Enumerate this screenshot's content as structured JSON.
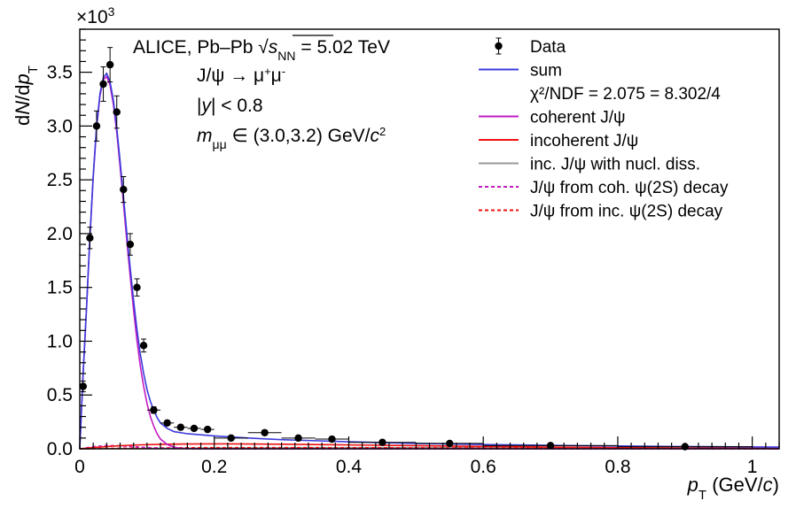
{
  "chart_data": {
    "type": "scatter",
    "x_label": "p_T (GeV/c)",
    "y_label": "dN/dp_T",
    "y_multiplier": "×10^3",
    "xlim": [
      0,
      1.04
    ],
    "ylim": [
      0,
      3.9
    ],
    "x_ticks": [
      "0",
      "0.2",
      "0.4",
      "0.6",
      "0.8",
      "1"
    ],
    "y_ticks": [
      "0.0",
      "0.5",
      "1.0",
      "1.5",
      "2.0",
      "2.5",
      "3.0",
      "3.5"
    ],
    "annotations": {
      "line1": "ALICE, Pb–Pb √s_NN = 5.02 TeV",
      "line2": "J/ψ → μ⁺μ⁻",
      "line3": "|y| < 0.8",
      "line4": "m_μμ ∈ (3.0,3.2) GeV/c²"
    },
    "legend": {
      "placement": "top-right",
      "entries": [
        {
          "label": "Data",
          "style": "marker",
          "color": "#000000"
        },
        {
          "label": "sum",
          "style": "solid",
          "color": "#3b3bdc"
        },
        {
          "label": "χ²/NDF = 2.075 = 8.302/4",
          "style": "none",
          "color": "#000000"
        },
        {
          "label": "coherent J/ψ",
          "style": "solid",
          "color": "#c21bc2"
        },
        {
          "label": "incoherent J/ψ",
          "style": "solid",
          "color": "#ee1111"
        },
        {
          "label": "inc. J/ψ with nucl. diss.",
          "style": "solid",
          "color": "#999999"
        },
        {
          "label": "J/ψ from coh. ψ(2S) decay",
          "style": "dashed",
          "color": "#c21bc2"
        },
        {
          "label": "J/ψ from inc. ψ(2S) decay",
          "style": "dashed",
          "color": "#ee1111"
        }
      ]
    },
    "data_points": [
      {
        "x": 0.005,
        "xerr": 0.005,
        "y": 0.58,
        "yerr": 0.05
      },
      {
        "x": 0.015,
        "xerr": 0.005,
        "y": 1.96,
        "yerr": 0.1
      },
      {
        "x": 0.025,
        "xerr": 0.005,
        "y": 3.0,
        "yerr": 0.14
      },
      {
        "x": 0.035,
        "xerr": 0.005,
        "y": 3.39,
        "yerr": 0.16
      },
      {
        "x": 0.045,
        "xerr": 0.005,
        "y": 3.57,
        "yerr": 0.16
      },
      {
        "x": 0.055,
        "xerr": 0.005,
        "y": 3.13,
        "yerr": 0.15
      },
      {
        "x": 0.065,
        "xerr": 0.005,
        "y": 2.41,
        "yerr": 0.12
      },
      {
        "x": 0.075,
        "xerr": 0.005,
        "y": 1.9,
        "yerr": 0.1
      },
      {
        "x": 0.085,
        "xerr": 0.005,
        "y": 1.5,
        "yerr": 0.08
      },
      {
        "x": 0.095,
        "xerr": 0.005,
        "y": 0.96,
        "yerr": 0.06
      },
      {
        "x": 0.11,
        "xerr": 0.01,
        "y": 0.36,
        "yerr": 0.03
      },
      {
        "x": 0.13,
        "xerr": 0.01,
        "y": 0.24,
        "yerr": 0.02
      },
      {
        "x": 0.15,
        "xerr": 0.01,
        "y": 0.2,
        "yerr": 0.02
      },
      {
        "x": 0.17,
        "xerr": 0.01,
        "y": 0.19,
        "yerr": 0.02
      },
      {
        "x": 0.19,
        "xerr": 0.01,
        "y": 0.18,
        "yerr": 0.02
      },
      {
        "x": 0.225,
        "xerr": 0.025,
        "y": 0.1,
        "yerr": 0.015
      },
      {
        "x": 0.275,
        "xerr": 0.025,
        "y": 0.15,
        "yerr": 0.015
      },
      {
        "x": 0.325,
        "xerr": 0.025,
        "y": 0.1,
        "yerr": 0.012
      },
      {
        "x": 0.375,
        "xerr": 0.025,
        "y": 0.09,
        "yerr": 0.012
      },
      {
        "x": 0.45,
        "xerr": 0.05,
        "y": 0.06,
        "yerr": 0.008
      },
      {
        "x": 0.55,
        "xerr": 0.05,
        "y": 0.05,
        "yerr": 0.008
      },
      {
        "x": 0.7,
        "xerr": 0.1,
        "y": 0.03,
        "yerr": 0.005
      },
      {
        "x": 0.9,
        "xerr": 0.1,
        "y": 0.02,
        "yerr": 0.004
      }
    ],
    "curves": {
      "coherent": {
        "color": "#c21bc2",
        "points": [
          [
            0,
            0
          ],
          [
            0.005,
            0.7
          ],
          [
            0.01,
            1.3
          ],
          [
            0.015,
            1.95
          ],
          [
            0.02,
            2.52
          ],
          [
            0.025,
            2.98
          ],
          [
            0.03,
            3.28
          ],
          [
            0.035,
            3.43
          ],
          [
            0.04,
            3.46
          ],
          [
            0.045,
            3.38
          ],
          [
            0.05,
            3.2
          ],
          [
            0.055,
            2.94
          ],
          [
            0.06,
            2.62
          ],
          [
            0.065,
            2.28
          ],
          [
            0.07,
            1.93
          ],
          [
            0.075,
            1.6
          ],
          [
            0.08,
            1.29
          ],
          [
            0.085,
            1.01
          ],
          [
            0.09,
            0.77
          ],
          [
            0.095,
            0.58
          ],
          [
            0.1,
            0.42
          ],
          [
            0.105,
            0.3
          ],
          [
            0.11,
            0.21
          ],
          [
            0.115,
            0.14
          ],
          [
            0.12,
            0.09
          ],
          [
            0.13,
            0.04
          ],
          [
            0.14,
            0.015
          ],
          [
            0.15,
            0.005
          ],
          [
            0.17,
            0
          ],
          [
            1.04,
            0
          ]
        ]
      },
      "sum": {
        "color": "#3b3bdc",
        "points": [
          [
            0,
            0
          ],
          [
            0.005,
            0.71
          ],
          [
            0.01,
            1.31
          ],
          [
            0.015,
            1.97
          ],
          [
            0.02,
            2.54
          ],
          [
            0.025,
            3.0
          ],
          [
            0.03,
            3.3
          ],
          [
            0.035,
            3.45
          ],
          [
            0.04,
            3.49
          ],
          [
            0.045,
            3.41
          ],
          [
            0.05,
            3.24
          ],
          [
            0.055,
            2.98
          ],
          [
            0.06,
            2.67
          ],
          [
            0.065,
            2.34
          ],
          [
            0.07,
            2.0
          ],
          [
            0.075,
            1.68
          ],
          [
            0.08,
            1.38
          ],
          [
            0.085,
            1.11
          ],
          [
            0.09,
            0.88
          ],
          [
            0.095,
            0.7
          ],
          [
            0.1,
            0.55
          ],
          [
            0.105,
            0.44
          ],
          [
            0.11,
            0.36
          ],
          [
            0.115,
            0.29
          ],
          [
            0.12,
            0.24
          ],
          [
            0.13,
            0.19
          ],
          [
            0.14,
            0.16
          ],
          [
            0.16,
            0.14
          ],
          [
            0.2,
            0.12
          ],
          [
            0.25,
            0.1
          ],
          [
            0.3,
            0.085
          ],
          [
            0.35,
            0.075
          ],
          [
            0.4,
            0.065
          ],
          [
            0.5,
            0.05
          ],
          [
            0.6,
            0.04
          ],
          [
            0.7,
            0.032
          ],
          [
            0.8,
            0.026
          ],
          [
            0.9,
            0.021
          ],
          [
            1.04,
            0.016
          ]
        ]
      },
      "incoherent": {
        "color": "#ee1111",
        "points": [
          [
            0,
            0
          ],
          [
            0.02,
            0.012
          ],
          [
            0.05,
            0.025
          ],
          [
            0.08,
            0.035
          ],
          [
            0.12,
            0.042
          ],
          [
            0.16,
            0.045
          ],
          [
            0.2,
            0.046
          ],
          [
            0.25,
            0.045
          ],
          [
            0.3,
            0.043
          ],
          [
            0.35,
            0.04
          ],
          [
            0.4,
            0.036
          ],
          [
            0.5,
            0.029
          ],
          [
            0.6,
            0.022
          ],
          [
            0.7,
            0.016
          ],
          [
            0.8,
            0.011
          ],
          [
            0.9,
            0.007
          ],
          [
            1.04,
            0.004
          ]
        ]
      },
      "nucl_diss": {
        "color": "#999999",
        "points": [
          [
            0,
            0
          ],
          [
            0.1,
            0.004
          ],
          [
            0.2,
            0.008
          ],
          [
            0.3,
            0.01
          ],
          [
            0.4,
            0.011
          ],
          [
            0.5,
            0.011
          ],
          [
            0.6,
            0.011
          ],
          [
            0.7,
            0.01
          ],
          [
            0.8,
            0.009
          ],
          [
            0.9,
            0.008
          ],
          [
            1.04,
            0.007
          ]
        ]
      },
      "coh_psi2s": {
        "color": "#c21bc2",
        "points": [
          [
            0,
            0
          ],
          [
            0.02,
            0.02
          ],
          [
            0.04,
            0.03
          ],
          [
            0.06,
            0.028
          ],
          [
            0.08,
            0.02
          ],
          [
            0.1,
            0.012
          ],
          [
            0.12,
            0.006
          ],
          [
            0.15,
            0.002
          ],
          [
            0.2,
            0
          ],
          [
            1.04,
            0
          ]
        ]
      },
      "inc_psi2s": {
        "color": "#ee1111",
        "points": [
          [
            0,
            0
          ],
          [
            0.05,
            0.004
          ],
          [
            0.1,
            0.008
          ],
          [
            0.2,
            0.011
          ],
          [
            0.3,
            0.011
          ],
          [
            0.4,
            0.01
          ],
          [
            0.5,
            0.009
          ],
          [
            0.6,
            0.007
          ],
          [
            0.7,
            0.006
          ],
          [
            0.8,
            0.004
          ],
          [
            0.9,
            0.003
          ],
          [
            1.04,
            0.002
          ]
        ]
      }
    }
  }
}
